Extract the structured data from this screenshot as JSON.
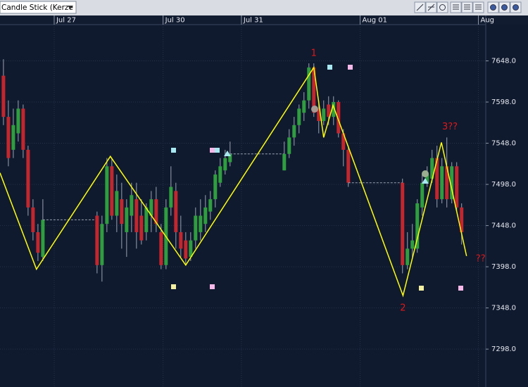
{
  "toolbar": {
    "chart_style": "Candle Stick (Kerze"
  },
  "chart_data": {
    "type": "candlestick",
    "xlim": [
      -0.7,
      97.9
    ],
    "xticks": [
      {
        "value": 10.3,
        "label": "Jul 27"
      },
      {
        "value": 32.4,
        "label": "Jul 30"
      },
      {
        "value": 48.3,
        "label": "Jul 31"
      },
      {
        "value": 72.4,
        "label": "Aug 01"
      },
      {
        "value": 96.4,
        "label": "Aug"
      }
    ],
    "ylim": [
      7252,
      7692
    ],
    "yticks": [
      {
        "value": 7648,
        "label": "7648.0"
      },
      {
        "value": 7598,
        "label": "7598.0"
      },
      {
        "value": 7548,
        "label": "7548.0"
      },
      {
        "value": 7498,
        "label": "7498.0"
      },
      {
        "value": 7448,
        "label": "7448.0"
      },
      {
        "value": 7398,
        "label": "7398.0"
      },
      {
        "value": 7348,
        "label": "7348.0"
      },
      {
        "value": 7298,
        "label": "7298.0"
      }
    ],
    "grid": true,
    "up_color": "#2e9e3e",
    "down_color": "#c4262e",
    "open": [
      7630,
      7580,
      7540,
      7560,
      7590,
      7540,
      7470,
      7440,
      7410,
      null,
      null,
      null,
      null,
      null,
      null,
      null,
      null,
      null,
      null,
      7460,
      7400,
      7450,
      7520,
      7460,
      7480,
      7440,
      7460,
      7480,
      7460,
      7440,
      7460,
      7480,
      7440,
      7400,
      7470,
      7490,
      7440,
      7430,
      7410,
      7430,
      7440,
      7450,
      7465,
      7480,
      7500,
      7515,
      7525,
      null,
      null,
      null,
      null,
      null,
      null,
      null,
      null,
      null,
      null,
      7515,
      7535,
      7555,
      7570,
      7585,
      7600,
      7640,
      7590,
      7575,
      7595,
      7580,
      7598,
      7560,
      7540,
      null,
      null,
      null,
      null,
      null,
      null,
      null,
      null,
      null,
      null,
      7500,
      7400,
      7420,
      7420,
      7470,
      7500,
      7505,
      7530,
      7480,
      7520,
      7480,
      7520,
      7470
    ],
    "high": [
      7650,
      7600,
      7590,
      7600,
      7595,
      7545,
      7480,
      7450,
      7480,
      null,
      null,
      null,
      null,
      null,
      null,
      null,
      null,
      null,
      null,
      7465,
      7460,
      7530,
      7530,
      7510,
      7500,
      7480,
      7500,
      7500,
      7480,
      7475,
      7490,
      7495,
      7450,
      7480,
      7520,
      7500,
      7460,
      7440,
      7440,
      7470,
      7480,
      7485,
      7490,
      7515,
      7530,
      7540,
      7550,
      null,
      null,
      null,
      null,
      null,
      null,
      null,
      null,
      null,
      null,
      7550,
      7565,
      7580,
      7595,
      7610,
      7645,
      7645,
      7600,
      7600,
      7605,
      7605,
      7600,
      7565,
      7545,
      null,
      null,
      null,
      null,
      null,
      null,
      null,
      null,
      null,
      null,
      7505,
      7440,
      7450,
      7480,
      7510,
      7520,
      7540,
      7545,
      7530,
      7555,
      7525,
      7525,
      7475
    ],
    "low": [
      7570,
      7520,
      7530,
      7550,
      7530,
      7460,
      7430,
      7405,
      7405,
      null,
      null,
      null,
      null,
      null,
      null,
      null,
      null,
      null,
      null,
      7390,
      7380,
      7440,
      7455,
      7440,
      7420,
      7410,
      7440,
      7420,
      7425,
      7430,
      7440,
      7440,
      7395,
      7395,
      7460,
      7420,
      7410,
      7400,
      7405,
      7420,
      7430,
      7440,
      7455,
      7470,
      7495,
      7510,
      7520,
      null,
      null,
      null,
      null,
      null,
      null,
      null,
      null,
      null,
      null,
      7515,
      7530,
      7545,
      7560,
      7575,
      7590,
      7580,
      7560,
      7570,
      7570,
      7570,
      7555,
      7520,
      7495,
      null,
      null,
      null,
      null,
      null,
      null,
      null,
      null,
      null,
      null,
      7390,
      7395,
      7410,
      7415,
      7460,
      7495,
      7500,
      7470,
      7475,
      7470,
      7475,
      7465,
      7425
    ],
    "close": [
      7580,
      7530,
      7570,
      7590,
      7540,
      7470,
      7440,
      7415,
      7455,
      null,
      null,
      null,
      null,
      null,
      null,
      null,
      null,
      null,
      null,
      7400,
      7450,
      7520,
      7460,
      7490,
      7450,
      7470,
      7485,
      7440,
      7430,
      7470,
      7480,
      7450,
      7400,
      7470,
      7495,
      7440,
      7420,
      7408,
      7430,
      7460,
      7460,
      7470,
      7480,
      7510,
      7520,
      7530,
      7535,
      null,
      null,
      null,
      null,
      null,
      null,
      null,
      null,
      null,
      null,
      7535,
      7555,
      7570,
      7590,
      7600,
      7640,
      7585,
      7575,
      7590,
      7580,
      7598,
      7560,
      7540,
      7500,
      null,
      null,
      null,
      null,
      null,
      null,
      null,
      null,
      null,
      null,
      7400,
      7420,
      7430,
      7475,
      7500,
      7510,
      7530,
      7480,
      7520,
      7480,
      7520,
      7470,
      7440
    ],
    "zigzag": {
      "color": "#ffff00",
      "x": [
        -0.7,
        6.7,
        21.7,
        37,
        63,
        65,
        66.9,
        81.1,
        88.9,
        94
      ],
      "values": [
        7512,
        7395,
        7532,
        7400,
        7640,
        7555,
        7594,
        7363,
        7549,
        7411
      ]
    },
    "annotations": [
      "1",
      "2",
      "3??",
      "??"
    ]
  }
}
